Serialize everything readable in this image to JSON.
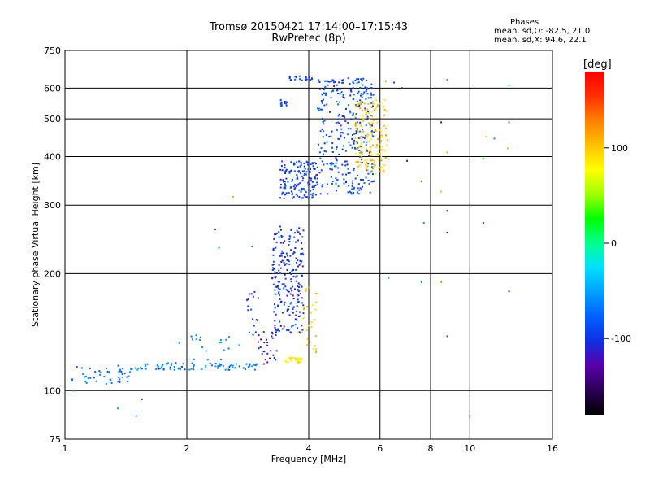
{
  "chart_data": {
    "type": "scatter",
    "title": "Tromsø 20150421 17:14:00–17:15:43",
    "subtitle": "RwPretec (8p)",
    "xlabel": "Frequency [MHz]",
    "ylabel": "Stationary phase Virtual Height [km]",
    "x_scale": "log",
    "y_scale": "log",
    "xlim": [
      1,
      16
    ],
    "ylim": [
      75,
      750
    ],
    "x_ticks": [
      1,
      2,
      4,
      6,
      8,
      10,
      16
    ],
    "y_ticks": [
      75,
      100,
      200,
      300,
      400,
      500,
      600,
      750
    ],
    "grid": true,
    "phases_box": {
      "title": "Phases",
      "line_o": "mean, sd,O: -82.5, 21.0",
      "line_x": "mean, sd,X:  94.6, 22.1"
    },
    "colorbar": {
      "label": "[deg]",
      "range": [
        -180,
        180
      ],
      "ticks": [
        100,
        0,
        -100
      ],
      "colors": [
        "#000000",
        "#2a0055",
        "#5a00a8",
        "#1030e0",
        "#0060ff",
        "#00a0ff",
        "#00e0ff",
        "#00ff90",
        "#00ff00",
        "#a0ff00",
        "#ffff00",
        "#ffc000",
        "#ff8000",
        "#ff3000",
        "#ff0000"
      ]
    },
    "traces": [
      {
        "f_range": [
          1.04,
          1.45
        ],
        "h_range": [
          103,
          116
        ],
        "phase": -70,
        "n": 45
      },
      {
        "f_range": [
          1.45,
          3.0
        ],
        "h_range": [
          113,
          118
        ],
        "phase": -65,
        "n": 90
      },
      {
        "f_range": [
          3.0,
          3.35
        ],
        "h_range": [
          115,
          140
        ],
        "phase": -120,
        "n": 25
      },
      {
        "f_range": [
          3.5,
          3.85
        ],
        "h_range": [
          118,
          122
        ],
        "phase": 88,
        "n": 30
      },
      {
        "f_range": [
          3.85,
          4.2
        ],
        "h_range": [
          125,
          185
        ],
        "phase": 95,
        "n": 28
      },
      {
        "f_range": [
          3.25,
          3.9
        ],
        "h_range": [
          140,
          265
        ],
        "phase": -100,
        "n": 220
      },
      {
        "f_range": [
          2.8,
          3.1
        ],
        "h_range": [
          135,
          180
        ],
        "phase": -95,
        "n": 18
      },
      {
        "f_range": [
          1.9,
          2.7
        ],
        "h_range": [
          120,
          140
        ],
        "phase": -60,
        "n": 20
      },
      {
        "f_range": [
          3.4,
          4.2
        ],
        "h_range": [
          312,
          390
        ],
        "phase": -95,
        "n": 150
      },
      {
        "f_range": [
          4.2,
          5.8
        ],
        "h_range": [
          320,
          640
        ],
        "phase": -88,
        "n": 330
      },
      {
        "f_range": [
          5.2,
          6.3
        ],
        "h_range": [
          360,
          560
        ],
        "phase": 98,
        "n": 150
      },
      {
        "f_range": [
          3.55,
          4.1
        ],
        "h_range": [
          628,
          645
        ],
        "phase": -95,
        "n": 20
      },
      {
        "f_range": [
          3.4,
          3.55
        ],
        "h_range": [
          535,
          560
        ],
        "phase": -95,
        "n": 15
      }
    ],
    "outliers": [
      {
        "f": 8.8,
        "h": 630,
        "phase": -60
      },
      {
        "f": 12.5,
        "h": 610,
        "phase": 10
      },
      {
        "f": 8.5,
        "h": 490,
        "phase": -130
      },
      {
        "f": 12.5,
        "h": 490,
        "phase": 150
      },
      {
        "f": 11.0,
        "h": 450,
        "phase": 110
      },
      {
        "f": 11.5,
        "h": 445,
        "phase": -60
      },
      {
        "f": 8.8,
        "h": 410,
        "phase": 120
      },
      {
        "f": 12.4,
        "h": 420,
        "phase": 110
      },
      {
        "f": 7.0,
        "h": 390,
        "phase": -130
      },
      {
        "f": 10.8,
        "h": 395,
        "phase": 30
      },
      {
        "f": 7.6,
        "h": 345,
        "phase": 150
      },
      {
        "f": 8.5,
        "h": 325,
        "phase": 110
      },
      {
        "f": 8.8,
        "h": 290,
        "phase": -140
      },
      {
        "f": 7.7,
        "h": 270,
        "phase": -60
      },
      {
        "f": 10.8,
        "h": 270,
        "phase": -110
      },
      {
        "f": 8.8,
        "h": 255,
        "phase": -140
      },
      {
        "f": 6.3,
        "h": 195,
        "phase": -60
      },
      {
        "f": 7.6,
        "h": 190,
        "phase": -60
      },
      {
        "f": 8.5,
        "h": 190,
        "phase": 120
      },
      {
        "f": 12.5,
        "h": 180,
        "phase": -90
      },
      {
        "f": 8.8,
        "h": 138,
        "phase": -90
      },
      {
        "f": 10.0,
        "h": 86,
        "phase": -60
      },
      {
        "f": 2.6,
        "h": 315,
        "phase": 120
      },
      {
        "f": 2.35,
        "h": 260,
        "phase": -100
      },
      {
        "f": 2.9,
        "h": 235,
        "phase": -70
      },
      {
        "f": 2.4,
        "h": 233,
        "phase": -60
      },
      {
        "f": 1.5,
        "h": 86,
        "phase": -60
      },
      {
        "f": 1.35,
        "h": 90,
        "phase": -60
      },
      {
        "f": 1.05,
        "h": 100,
        "phase": -60
      },
      {
        "f": 1.55,
        "h": 95,
        "phase": -100
      },
      {
        "f": 6.2,
        "h": 625,
        "phase": 120
      },
      {
        "f": 6.5,
        "h": 620,
        "phase": -90
      },
      {
        "f": 6.8,
        "h": 600,
        "phase": -120
      }
    ]
  }
}
